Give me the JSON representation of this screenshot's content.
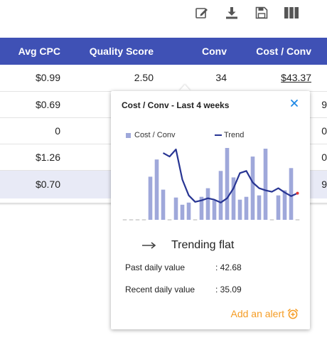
{
  "toolbar": {
    "icons": [
      "edit-icon",
      "download-icon",
      "save-icon",
      "columns-icon"
    ]
  },
  "table": {
    "columns": [
      "Avg CPC",
      "Quality Score",
      "Conv",
      "Cost / Conv"
    ],
    "rows": [
      {
        "avg_cpc": "$0.99",
        "quality_score": "2.50",
        "conv": "34",
        "cost_conv": "$43.37",
        "clip": ""
      },
      {
        "avg_cpc": "$0.69",
        "quality_score": "",
        "conv": "",
        "cost_conv": "",
        "clip": "9"
      },
      {
        "avg_cpc": "0",
        "quality_score": "",
        "conv": "",
        "cost_conv": "",
        "clip": "0"
      },
      {
        "avg_cpc": "$1.26",
        "quality_score": "",
        "conv": "",
        "cost_conv": "",
        "clip": "0"
      },
      {
        "avg_cpc": "$0.70",
        "quality_score": "",
        "conv": "",
        "cost_conv": "",
        "clip": "9"
      }
    ]
  },
  "popup": {
    "title": "Cost / Conv - Last 4 weeks",
    "legend_bar": "Cost / Conv",
    "legend_trend": "Trend",
    "trend_label": "Trending flat",
    "past_label": "Past daily value",
    "past_value": ": 42.68",
    "recent_label": "Recent daily value",
    "recent_value": ": 35.09",
    "alert_label": "Add an alert"
  },
  "colors": {
    "header": "#3f51b5",
    "bar": "#9fa8da",
    "trend_line": "#283593",
    "accent": "#f59c24",
    "close": "#1e88e5"
  },
  "chart_data": {
    "type": "bar",
    "x": [
      1,
      2,
      3,
      4,
      5,
      6,
      7,
      8,
      9,
      10,
      11,
      12,
      13,
      14,
      15,
      16,
      17,
      18,
      19,
      20,
      21,
      22,
      23,
      24,
      25,
      26,
      27,
      28
    ],
    "series": [
      {
        "name": "Cost / Conv",
        "type": "bar",
        "values": [
          0,
          0,
          0,
          0,
          0.6,
          0.84,
          0.42,
          0,
          0.31,
          0.21,
          0.24,
          0,
          0.32,
          0.44,
          0.27,
          0.68,
          1.0,
          0.59,
          0.28,
          0.32,
          0.88,
          0.34,
          0.99,
          0,
          0.34,
          0.41,
          0.72,
          0
        ]
      },
      {
        "name": "Trend",
        "type": "line",
        "values": [
          null,
          null,
          null,
          null,
          null,
          null,
          0.93,
          0.88,
          0.98,
          0.56,
          0.34,
          0.25,
          0.27,
          0.3,
          0.28,
          0.24,
          0.3,
          0.44,
          0.65,
          0.68,
          0.52,
          0.44,
          0.41,
          0.39,
          0.44,
          0.38,
          0.33,
          0.37
        ]
      }
    ],
    "legend": "top",
    "grid": false
  }
}
